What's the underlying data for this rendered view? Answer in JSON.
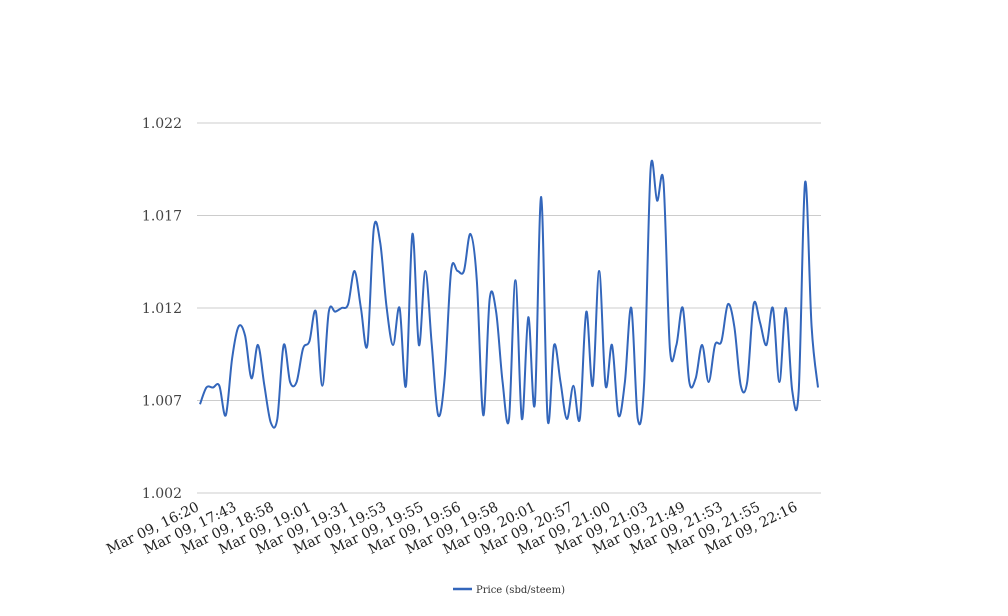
{
  "chart_data": {
    "type": "line",
    "title": "",
    "xlabel": "",
    "ylabel": "",
    "ylim": [
      1.002,
      1.022
    ],
    "y_ticks": [
      "1.002",
      "1.007",
      "1.012",
      "1.017",
      "1.022"
    ],
    "x_tick_labels": [
      "Mar 09, 16:20",
      "Mar 09, 17:43",
      "Mar 09, 18:58",
      "Mar 09, 19:01",
      "Mar 09, 19:31",
      "Mar 09, 19:53",
      "Mar 09, 19:55",
      "Mar 09, 19:56",
      "Mar 09, 19:58",
      "Mar 09, 20:01",
      "Mar 09, 20:57",
      "Mar 09, 21:00",
      "Mar 09, 21:03",
      "Mar 09, 21:49",
      "Mar 09, 21:53",
      "Mar 09, 21:55",
      "Mar 09, 22:16"
    ],
    "grid": true,
    "legend_position": "bottom",
    "series": [
      {
        "name": "Price (sbd/steem)",
        "color": "#3366bb",
        "values": [
          1.0068,
          1.0077,
          1.0077,
          1.0078,
          1.0062,
          1.0093,
          1.011,
          1.0105,
          1.0082,
          1.01,
          1.0078,
          1.0058,
          1.006,
          1.01,
          1.008,
          1.008,
          1.0098,
          1.0102,
          1.0118,
          1.0078,
          1.0118,
          1.0118,
          1.012,
          1.0122,
          1.014,
          1.012,
          1.01,
          1.0163,
          1.0155,
          1.012,
          1.01,
          1.012,
          1.0078,
          1.016,
          1.01,
          1.014,
          1.01,
          1.0062,
          1.0082,
          1.014,
          1.014,
          1.014,
          1.016,
          1.0135,
          1.0062,
          1.0125,
          1.0118,
          1.008,
          1.006,
          1.0135,
          1.006,
          1.0115,
          1.0068,
          1.018,
          1.006,
          1.01,
          1.008,
          1.006,
          1.0078,
          1.006,
          1.0118,
          1.0078,
          1.014,
          1.0078,
          1.01,
          1.0062,
          1.008,
          1.012,
          1.006,
          1.008,
          1.0195,
          1.0178,
          1.0188,
          1.0098,
          1.01,
          1.012,
          1.008,
          1.0082,
          1.01,
          1.008,
          1.01,
          1.0102,
          1.0122,
          1.011,
          1.0078,
          1.008,
          1.0122,
          1.0112,
          1.01,
          1.012,
          1.008,
          1.012,
          1.0075,
          1.0075,
          1.0188,
          1.011,
          1.0077
        ]
      }
    ]
  }
}
